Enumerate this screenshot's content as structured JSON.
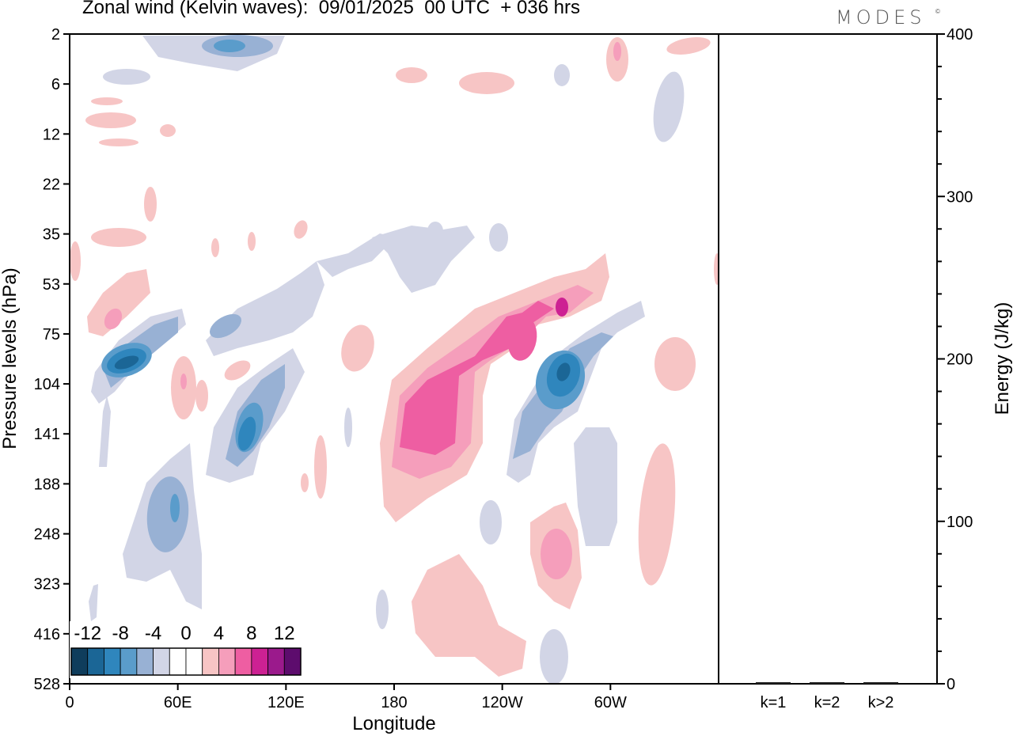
{
  "title": "Zonal wind (Kelvin waves):  09/01/2025  00 UTC  + 036 hrs",
  "brand": "MODES",
  "brand_mark": "©",
  "colors": {
    "neg12": "#0f3d5c",
    "neg10": "#1b6696",
    "neg8": "#2f86bd",
    "neg6": "#5a9ccb",
    "neg4": "#98b1d4",
    "neg2": "#d2d5e6",
    "zero": "#ffffff",
    "pos2": "#f7c5c5",
    "pos4": "#f59ebb",
    "pos6": "#ee5ea2",
    "pos8": "#cd2193",
    "pos10": "#9b1a8c",
    "pos12": "#5d0c6d"
  },
  "chart_data": [
    {
      "type": "heatmap",
      "xlabel": "Longitude",
      "ylabel": "Pressure levels (hPa)",
      "x_ticks": [
        "0",
        "60E",
        "120E",
        "180",
        "120W",
        "60W"
      ],
      "y_ticks": [
        "2",
        "6",
        "12",
        "22",
        "35",
        "53",
        "75",
        "104",
        "141",
        "188",
        "248",
        "323",
        "416",
        "528"
      ],
      "colorbar": {
        "labels": [
          "-12",
          "-8",
          "-4",
          "0",
          "4",
          "8",
          "12"
        ],
        "levels": [
          -12,
          -10,
          -8,
          -6,
          -4,
          -2,
          0,
          2,
          4,
          6,
          8,
          10,
          12
        ]
      },
      "features": [
        {
          "sign": "neg",
          "peak": -12,
          "lon": 25,
          "level": "104"
        },
        {
          "sign": "neg",
          "peak": -8,
          "lon": 100,
          "level": "141"
        },
        {
          "sign": "neg",
          "peak": -8,
          "lon": 60,
          "level": "248"
        },
        {
          "sign": "neg",
          "peak": -12,
          "lon": 280,
          "level": "104"
        },
        {
          "sign": "pos",
          "peak": 8,
          "lon": 200,
          "level": "141"
        },
        {
          "sign": "pos",
          "peak": 8,
          "lon": 238,
          "level": "75"
        },
        {
          "sign": "pos",
          "peak": 6,
          "lon": 275,
          "level": "248"
        },
        {
          "sign": "pos",
          "peak": 2,
          "lon": 210,
          "level": "416"
        },
        {
          "sign": "pos",
          "peak": 2,
          "lon": 315,
          "level": "248"
        }
      ]
    },
    {
      "type": "bar",
      "categories": [
        "k=1",
        "k=2",
        "k>2"
      ],
      "values": [
        0.5,
        0.3,
        0.8
      ],
      "ylabel": "Energy (J/kg)",
      "ylim": [
        0,
        400
      ],
      "y_ticks": [
        "0",
        "100",
        "200",
        "300",
        "400"
      ]
    }
  ]
}
